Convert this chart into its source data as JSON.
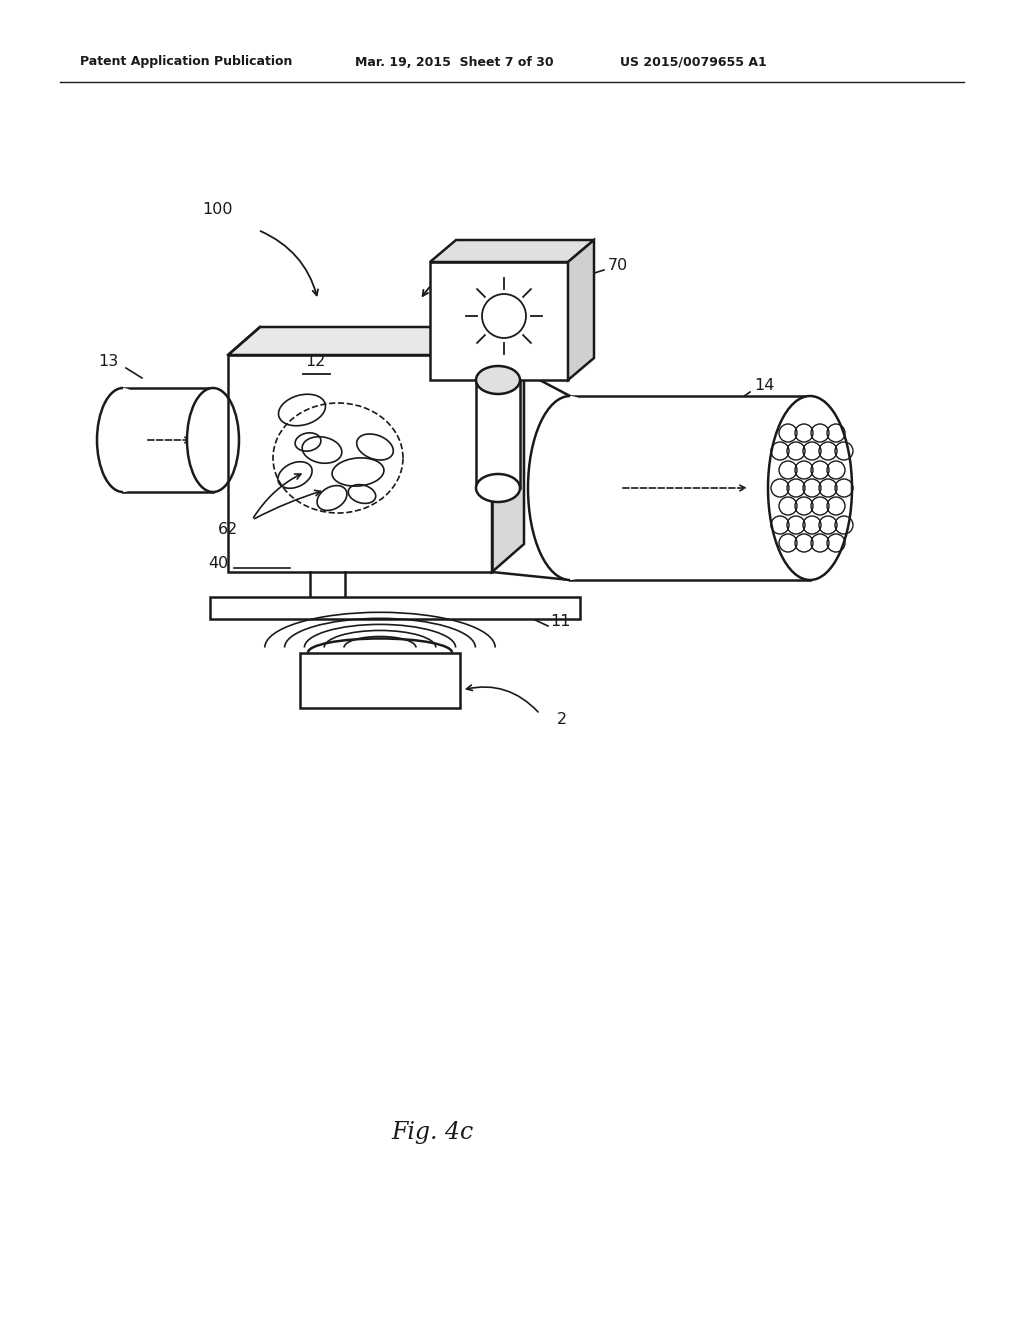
{
  "background_color": "#ffffff",
  "header_left": "Patent Application Publication",
  "header_mid": "Mar. 19, 2015  Sheet 7 of 30",
  "header_right": "US 2015/0079655 A1",
  "figure_label": "Fig. 4c"
}
